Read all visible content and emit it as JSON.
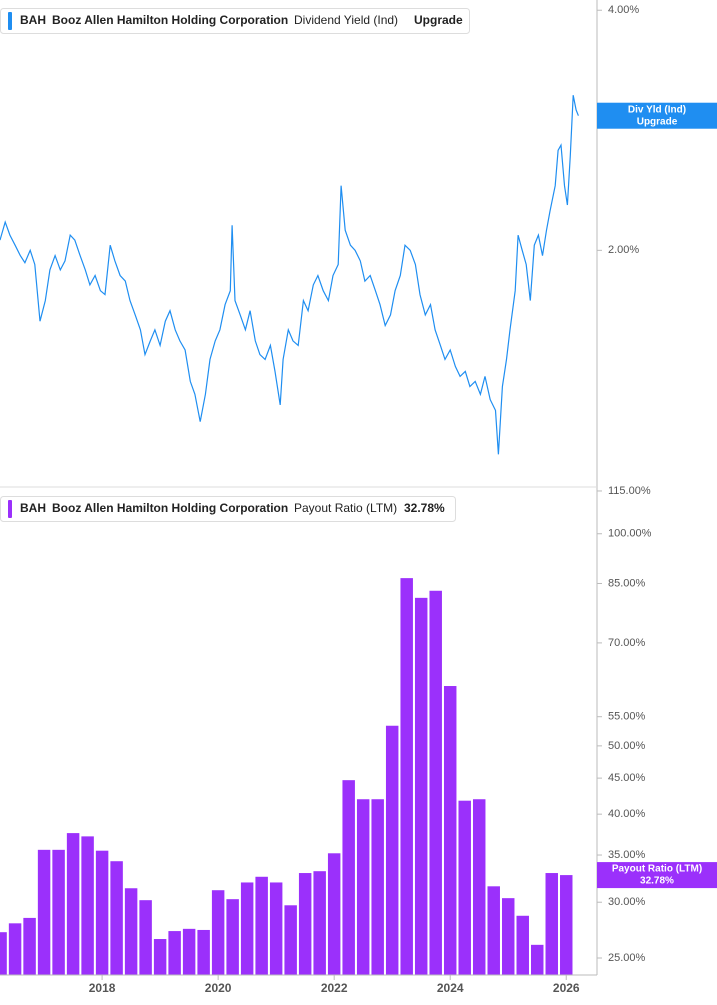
{
  "chart_data": [
    {
      "type": "line",
      "ticker": "BAH",
      "company": "Booz Allen Hamilton Holding Corporation",
      "metric": "Dividend Yield (Ind)",
      "status": "Upgrade",
      "tag_label": "Div Yld (Ind)",
      "color": "#1f8ef1",
      "log_scale": true,
      "xlim": [
        2016.24,
        2026.53
      ],
      "ylim": [
        1.01,
        4.12
      ],
      "yticks": [
        {
          "value": 4,
          "label": "4.00%"
        },
        {
          "value": 2,
          "label": "2.00%"
        }
      ],
      "x": [
        2016.24,
        2016.33,
        2016.41,
        2016.5,
        2016.59,
        2016.67,
        2016.76,
        2016.84,
        2016.93,
        2017.02,
        2017.1,
        2017.19,
        2017.28,
        2017.36,
        2017.45,
        2017.53,
        2017.62,
        2017.71,
        2017.79,
        2017.88,
        2017.97,
        2018.05,
        2018.14,
        2018.22,
        2018.31,
        2018.4,
        2018.48,
        2018.57,
        2018.66,
        2018.74,
        2018.83,
        2018.91,
        2019.0,
        2019.09,
        2019.17,
        2019.26,
        2019.34,
        2019.43,
        2019.52,
        2019.6,
        2019.69,
        2019.78,
        2019.86,
        2019.95,
        2020.03,
        2020.12,
        2020.21,
        2020.24,
        2020.29,
        2020.38,
        2020.47,
        2020.55,
        2020.64,
        2020.72,
        2020.81,
        2020.9,
        2020.98,
        2021.07,
        2021.12,
        2021.21,
        2021.29,
        2021.38,
        2021.47,
        2021.55,
        2021.64,
        2021.72,
        2021.81,
        2021.9,
        2021.98,
        2022.07,
        2022.12,
        2022.19,
        2022.28,
        2022.36,
        2022.45,
        2022.53,
        2022.62,
        2022.71,
        2022.79,
        2022.88,
        2022.97,
        2023.05,
        2023.14,
        2023.22,
        2023.31,
        2023.4,
        2023.48,
        2023.57,
        2023.66,
        2023.74,
        2023.83,
        2023.91,
        2024.0,
        2024.09,
        2024.17,
        2024.26,
        2024.34,
        2024.43,
        2024.52,
        2024.6,
        2024.69,
        2024.78,
        2024.83,
        2024.9,
        2024.97,
        2025.03,
        2025.12,
        2025.17,
        2025.24,
        2025.31,
        2025.38,
        2025.45,
        2025.52,
        2025.59,
        2025.66,
        2025.72,
        2025.81,
        2025.86,
        2025.91,
        2025.97,
        2026.02,
        2026.07,
        2026.12,
        2026.17,
        2026.21
      ],
      "values": [
        2.06,
        2.17,
        2.09,
        2.03,
        1.97,
        1.93,
        2.0,
        1.92,
        1.63,
        1.73,
        1.89,
        1.97,
        1.89,
        1.94,
        2.09,
        2.06,
        1.97,
        1.89,
        1.81,
        1.86,
        1.78,
        1.76,
        2.03,
        1.94,
        1.86,
        1.83,
        1.73,
        1.66,
        1.59,
        1.48,
        1.54,
        1.59,
        1.52,
        1.63,
        1.68,
        1.59,
        1.54,
        1.5,
        1.37,
        1.32,
        1.22,
        1.32,
        1.46,
        1.54,
        1.59,
        1.71,
        1.78,
        2.15,
        1.73,
        1.66,
        1.59,
        1.68,
        1.54,
        1.48,
        1.46,
        1.52,
        1.41,
        1.28,
        1.46,
        1.59,
        1.54,
        1.52,
        1.73,
        1.68,
        1.81,
        1.86,
        1.78,
        1.73,
        1.86,
        1.92,
        2.41,
        2.12,
        2.03,
        2.0,
        1.94,
        1.83,
        1.86,
        1.78,
        1.71,
        1.61,
        1.66,
        1.78,
        1.86,
        2.03,
        2.0,
        1.92,
        1.76,
        1.66,
        1.71,
        1.59,
        1.52,
        1.46,
        1.5,
        1.43,
        1.39,
        1.41,
        1.35,
        1.37,
        1.32,
        1.39,
        1.3,
        1.26,
        1.11,
        1.35,
        1.46,
        1.59,
        1.78,
        2.09,
        2.0,
        1.92,
        1.73,
        2.03,
        2.09,
        1.97,
        2.12,
        2.24,
        2.41,
        2.67,
        2.71,
        2.41,
        2.28,
        2.63,
        3.13,
        3.0,
        2.95
      ]
    },
    {
      "type": "bar",
      "ticker": "BAH",
      "company": "Booz Allen Hamilton Holding Corporation",
      "metric": "Payout Ratio (LTM)",
      "last_label": "32.78%",
      "color": "#9b30fb",
      "log_scale": true,
      "xlim": [
        2016.24,
        2026.53
      ],
      "ylim": [
        23.65,
        116.5
      ],
      "xticks": [
        2018,
        2020,
        2022,
        2024,
        2026
      ],
      "yticks": [
        {
          "value": 115,
          "label": "115.00%"
        },
        {
          "value": 100,
          "label": "100.00%"
        },
        {
          "value": 85,
          "label": "85.00%"
        },
        {
          "value": 70,
          "label": "70.00%"
        },
        {
          "value": 55,
          "label": "55.00%"
        },
        {
          "value": 50,
          "label": "50.00%"
        },
        {
          "value": 45,
          "label": "45.00%"
        },
        {
          "value": 40,
          "label": "40.00%"
        },
        {
          "value": 35,
          "label": "35.00%"
        },
        {
          "value": 30,
          "label": "30.00%"
        },
        {
          "value": 25,
          "label": "25.00%"
        }
      ],
      "x": [
        2016.25,
        2016.5,
        2016.75,
        2017,
        2017.25,
        2017.5,
        2017.75,
        2018,
        2018.25,
        2018.5,
        2018.75,
        2019,
        2019.25,
        2019.5,
        2019.75,
        2020,
        2020.25,
        2020.5,
        2020.75,
        2021,
        2021.25,
        2021.5,
        2021.75,
        2022,
        2022.25,
        2022.5,
        2022.75,
        2023,
        2023.25,
        2023.5,
        2023.75,
        2024,
        2024.25,
        2024.5,
        2024.75,
        2025,
        2025.25,
        2025.5,
        2025.75,
        2026
      ],
      "values": [
        27.2,
        28.0,
        28.5,
        35.6,
        35.6,
        37.6,
        37.2,
        35.5,
        34.3,
        31.4,
        30.2,
        26.6,
        27.3,
        27.5,
        27.4,
        31.2,
        30.3,
        32.0,
        32.6,
        32.0,
        29.7,
        33.0,
        33.2,
        35.2,
        44.7,
        42.0,
        42.0,
        53.4,
        86.5,
        81.1,
        83.0,
        60.8,
        41.8,
        42.0,
        31.6,
        30.4,
        28.7,
        26.1,
        33.0,
        32.78
      ]
    }
  ]
}
